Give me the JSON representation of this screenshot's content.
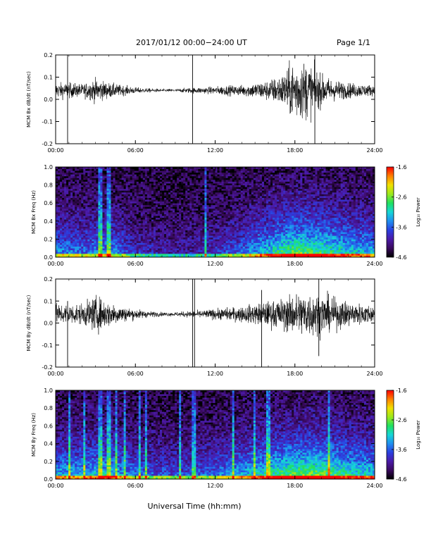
{
  "header": {
    "title": "2017/01/12  00:00−24:00 UT",
    "page": "Page 1/1"
  },
  "xlabel": "Universal Time (hh:mm)",
  "colors": {
    "trace": "#000000",
    "background": "#ffffff",
    "colormap": [
      "#000000",
      "#3a0a5e",
      "#4b1aa8",
      "#2a3fe0",
      "#1f8ff0",
      "#16d6d6",
      "#20e060",
      "#9be81c",
      "#f0e000",
      "#ff8000",
      "#ff0000"
    ]
  },
  "chart_data": [
    {
      "type": "line",
      "panel": "bx-time-series",
      "ylabel": "MCM Bx dB/dt (nT/sec)",
      "xlim": [
        0,
        24
      ],
      "ylim": [
        -0.2,
        0.2
      ],
      "x_ticks": [
        "00:00",
        "06:00",
        "12:00",
        "18:00",
        "24:00"
      ],
      "y_ticks": [
        "-0.2",
        "-0.1",
        "0.0",
        "0.1",
        "0.2"
      ],
      "baseline": 0.04,
      "amplitude_envelope": {
        "hours": [
          0,
          1,
          2,
          3,
          4,
          5,
          6,
          7,
          8,
          9,
          10,
          11,
          12,
          13,
          14,
          15,
          16,
          17,
          18,
          19,
          20,
          21,
          22,
          23,
          24
        ],
        "amp": [
          0.03,
          0.03,
          0.025,
          0.045,
          0.03,
          0.02,
          0.012,
          0.008,
          0.006,
          0.006,
          0.01,
          0.012,
          0.015,
          0.02,
          0.02,
          0.03,
          0.04,
          0.06,
          0.12,
          0.11,
          0.06,
          0.04,
          0.03,
          0.025,
          0.02
        ]
      },
      "spikes": [
        {
          "hour": 0.9,
          "min": -0.21,
          "max": 0.21
        },
        {
          "hour": 10.3,
          "min": -0.21,
          "max": 0.21
        },
        {
          "hour": 19.5,
          "min": -0.21,
          "max": 0.21
        }
      ]
    },
    {
      "type": "heatmap",
      "panel": "bx-spectrogram",
      "ylabel": "MCM Bx Freq (Hz)",
      "xlim": [
        0,
        24
      ],
      "ylim": [
        0,
        1
      ],
      "x_ticks": [
        "00:00",
        "06:00",
        "12:00",
        "18:00",
        "24:00"
      ],
      "y_ticks": [
        "0.0",
        "0.2",
        "0.4",
        "0.6",
        "0.8",
        "1.0"
      ],
      "colorbar_label": "Log₁₀ Power",
      "colorbar_ticks": [
        "-1.6",
        "-2.6",
        "-3.6",
        "-4.6"
      ],
      "colorbar_range": [
        -4.6,
        -1.6
      ],
      "activity_profile": {
        "hours": [
          0,
          2,
          4,
          6,
          8,
          10,
          12,
          14,
          16,
          18,
          20,
          22,
          24
        ],
        "level": [
          0.35,
          0.3,
          0.35,
          0.2,
          0.15,
          0.15,
          0.2,
          0.3,
          0.45,
          0.6,
          0.55,
          0.45,
          0.4
        ]
      },
      "broadband_lines": [
        3.3,
        3.5,
        4.0,
        11.3
      ]
    },
    {
      "type": "line",
      "panel": "by-time-series",
      "ylabel": "MCM By dB/dt (nT/sec)",
      "xlim": [
        0,
        24
      ],
      "ylim": [
        -0.2,
        0.2
      ],
      "x_ticks": [
        "00:00",
        "06:00",
        "12:00",
        "18:00",
        "24:00"
      ],
      "y_ticks": [
        "-0.2",
        "-0.1",
        "0.0",
        "0.1",
        "0.2"
      ],
      "baseline": 0.04,
      "amplitude_envelope": {
        "hours": [
          0,
          1,
          2,
          3,
          4,
          5,
          6,
          7,
          8,
          9,
          10,
          11,
          12,
          13,
          14,
          15,
          16,
          17,
          18,
          19,
          20,
          21,
          22,
          23,
          24
        ],
        "amp": [
          0.04,
          0.04,
          0.04,
          0.07,
          0.05,
          0.03,
          0.02,
          0.012,
          0.008,
          0.008,
          0.012,
          0.015,
          0.02,
          0.025,
          0.03,
          0.04,
          0.05,
          0.06,
          0.08,
          0.09,
          0.08,
          0.06,
          0.05,
          0.04,
          0.035
        ]
      },
      "spikes": [
        {
          "hour": 0.9,
          "min": -0.21,
          "max": 0.1
        },
        {
          "hour": 10.3,
          "min": -0.21,
          "max": 0.21
        },
        {
          "hour": 10.45,
          "min": -0.21,
          "max": 0.21
        },
        {
          "hour": 15.5,
          "min": -0.21,
          "max": 0.15
        },
        {
          "hour": 19.8,
          "min": -0.15,
          "max": 0.21
        }
      ]
    },
    {
      "type": "heatmap",
      "panel": "by-spectrogram",
      "ylabel": "MCM By Freq (Hz)",
      "xlim": [
        0,
        24
      ],
      "ylim": [
        0,
        1
      ],
      "x_ticks": [
        "00:00",
        "06:00",
        "12:00",
        "18:00",
        "24:00"
      ],
      "y_ticks": [
        "0.0",
        "0.2",
        "0.4",
        "0.6",
        "0.8",
        "1.0"
      ],
      "colorbar_label": "Log₁₀ Power",
      "colorbar_ticks": [
        "-1.6",
        "-2.6",
        "-3.6",
        "-4.6"
      ],
      "colorbar_range": [
        -4.6,
        -1.6
      ],
      "activity_profile": {
        "hours": [
          0,
          2,
          4,
          6,
          8,
          10,
          12,
          14,
          16,
          18,
          20,
          22,
          24
        ],
        "level": [
          0.4,
          0.4,
          0.45,
          0.3,
          0.25,
          0.25,
          0.3,
          0.4,
          0.5,
          0.6,
          0.6,
          0.5,
          0.45
        ]
      },
      "broadband_lines": [
        1.1,
        2.1,
        3.3,
        3.5,
        4.0,
        4.6,
        5.2,
        6.3,
        6.8,
        9.3,
        10.3,
        10.5,
        13.3,
        15.0,
        16.0,
        20.5
      ]
    }
  ]
}
